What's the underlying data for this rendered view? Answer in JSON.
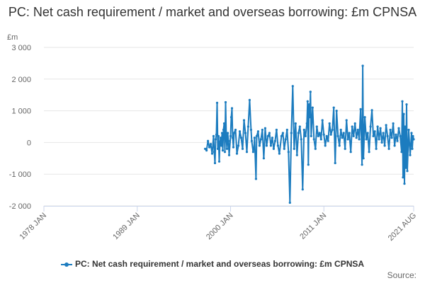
{
  "chart_data": {
    "type": "line",
    "title": "PC: Net cash requirement / market and overseas borrowing: £m CPNSA",
    "unit_label": "£m",
    "ylim": [
      -2000,
      3000
    ],
    "y_ticks": [
      "3 000",
      "2 000",
      "1 000",
      "0",
      "-1 000",
      "-2 000"
    ],
    "y_tick_values": [
      3000,
      2000,
      1000,
      0,
      -1000,
      -2000
    ],
    "x_ticks": [
      "1978 JAN",
      "1989 JAN",
      "2000 JAN",
      "2011 JAN",
      "2021 AUG"
    ],
    "x_tick_values": [
      "1978-01",
      "1989-01",
      "2000-01",
      "2011-01",
      "2021-08"
    ],
    "grid": true,
    "legend_position": "bottom",
    "series": [
      {
        "name": "PC: Net cash requirement / market and overseas borrowing: £m CPNSA",
        "color": "#1c7cbf",
        "points": [
          [
            "1997-01",
            -200
          ],
          [
            "1997-03",
            -250
          ],
          [
            "1997-05",
            50
          ],
          [
            "1997-07",
            -150
          ],
          [
            "1997-09",
            -50
          ],
          [
            "1997-11",
            -350
          ],
          [
            "1998-01",
            200
          ],
          [
            "1998-02",
            -300
          ],
          [
            "1998-03",
            -650
          ],
          [
            "1998-04",
            100
          ],
          [
            "1998-05",
            250
          ],
          [
            "1998-06",
            1250
          ],
          [
            "1998-07",
            -200
          ],
          [
            "1998-08",
            200
          ],
          [
            "1998-09",
            -600
          ],
          [
            "1998-10",
            0
          ],
          [
            "1998-11",
            150
          ],
          [
            "1998-12",
            -100
          ],
          [
            "1999-01",
            300
          ],
          [
            "1999-02",
            -250
          ],
          [
            "1999-03",
            400
          ],
          [
            "1999-04",
            600
          ],
          [
            "1999-05",
            -300
          ],
          [
            "1999-06",
            1270
          ],
          [
            "1999-07",
            100
          ],
          [
            "1999-08",
            -200
          ],
          [
            "1999-09",
            300
          ],
          [
            "1999-10",
            50
          ],
          [
            "1999-11",
            -400
          ],
          [
            "2000-01",
            200
          ],
          [
            "2000-02",
            800
          ],
          [
            "2000-03",
            1080
          ],
          [
            "2000-04",
            150
          ],
          [
            "2000-05",
            -150
          ],
          [
            "2000-06",
            300
          ],
          [
            "2000-08",
            400
          ],
          [
            "2000-10",
            -350
          ],
          [
            "2000-12",
            -100
          ],
          [
            "2001-02",
            350
          ],
          [
            "2001-04",
            150
          ],
          [
            "2001-06",
            -200
          ],
          [
            "2001-08",
            700
          ],
          [
            "2001-10",
            300
          ],
          [
            "2001-12",
            -300
          ],
          [
            "2002-02",
            500
          ],
          [
            "2002-04",
            1340
          ],
          [
            "2002-06",
            400
          ],
          [
            "2002-07",
            50
          ],
          [
            "2002-09",
            -300
          ],
          [
            "2002-10",
            -200
          ],
          [
            "2002-11",
            150
          ],
          [
            "2003-01",
            -1150
          ],
          [
            "2003-02",
            200
          ],
          [
            "2003-04",
            350
          ],
          [
            "2003-06",
            -100
          ],
          [
            "2003-08",
            100
          ],
          [
            "2003-10",
            400
          ],
          [
            "2003-12",
            -500
          ],
          [
            "2004-02",
            450
          ],
          [
            "2004-04",
            -100
          ],
          [
            "2004-06",
            200
          ],
          [
            "2004-08",
            300
          ],
          [
            "2004-10",
            -100
          ],
          [
            "2004-12",
            150
          ],
          [
            "2005-02",
            -200
          ],
          [
            "2005-04",
            50
          ],
          [
            "2005-06",
            400
          ],
          [
            "2005-08",
            -100
          ],
          [
            "2005-10",
            -350
          ],
          [
            "2006-01",
            200
          ],
          [
            "2006-03",
            300
          ],
          [
            "2006-05",
            -200
          ],
          [
            "2006-07",
            100
          ],
          [
            "2006-09",
            400
          ],
          [
            "2006-11",
            -300
          ],
          [
            "2007-01",
            -1900
          ],
          [
            "2007-03",
            300
          ],
          [
            "2007-05",
            1780
          ],
          [
            "2007-07",
            -200
          ],
          [
            "2007-09",
            600
          ],
          [
            "2007-11",
            -400
          ],
          [
            "2008-01",
            300
          ],
          [
            "2008-03",
            500
          ],
          [
            "2008-05",
            100
          ],
          [
            "2008-07",
            -1480
          ],
          [
            "2008-09",
            400
          ],
          [
            "2008-11",
            200
          ],
          [
            "2009-01",
            600
          ],
          [
            "2009-02",
            1300
          ],
          [
            "2009-03",
            -700
          ],
          [
            "2009-04",
            1200
          ],
          [
            "2009-05",
            800
          ],
          [
            "2009-06",
            1600
          ],
          [
            "2009-07",
            200
          ],
          [
            "2009-09",
            1100
          ],
          [
            "2009-11",
            100
          ],
          [
            "2010-01",
            -200
          ],
          [
            "2010-03",
            500
          ],
          [
            "2010-05",
            200
          ],
          [
            "2010-07",
            300
          ],
          [
            "2010-09",
            100
          ],
          [
            "2010-11",
            700
          ],
          [
            "2011-01",
            250
          ],
          [
            "2011-03",
            -100
          ],
          [
            "2011-05",
            200
          ],
          [
            "2011-07",
            50
          ],
          [
            "2011-09",
            600
          ],
          [
            "2011-11",
            250
          ],
          [
            "2012-01",
            400
          ],
          [
            "2012-03",
            1100
          ],
          [
            "2012-05",
            -650
          ],
          [
            "2012-07",
            1000
          ],
          [
            "2012-09",
            200
          ],
          [
            "2012-11",
            -100
          ],
          [
            "2013-01",
            400
          ],
          [
            "2013-03",
            150
          ],
          [
            "2013-05",
            300
          ],
          [
            "2013-07",
            -200
          ],
          [
            "2013-09",
            700
          ],
          [
            "2013-11",
            100
          ],
          [
            "2014-01",
            300
          ],
          [
            "2014-03",
            -300
          ],
          [
            "2014-05",
            500
          ],
          [
            "2014-07",
            200
          ],
          [
            "2014-09",
            600
          ],
          [
            "2014-11",
            150
          ],
          [
            "2015-01",
            400
          ],
          [
            "2015-03",
            100
          ],
          [
            "2015-05",
            1050
          ],
          [
            "2015-07",
            -700
          ],
          [
            "2015-08",
            2420
          ],
          [
            "2015-09",
            -500
          ],
          [
            "2015-11",
            800
          ],
          [
            "2016-01",
            100
          ],
          [
            "2016-03",
            300
          ],
          [
            "2016-05",
            -300
          ],
          [
            "2016-07",
            500
          ],
          [
            "2016-09",
            1020
          ],
          [
            "2016-11",
            200
          ],
          [
            "2017-01",
            350
          ],
          [
            "2017-03",
            -200
          ],
          [
            "2017-05",
            500
          ],
          [
            "2017-07",
            100
          ],
          [
            "2017-09",
            450
          ],
          [
            "2017-11",
            0
          ],
          [
            "2018-01",
            300
          ],
          [
            "2018-03",
            -100
          ],
          [
            "2018-05",
            550
          ],
          [
            "2018-07",
            200
          ],
          [
            "2018-09",
            -200
          ],
          [
            "2018-11",
            400
          ],
          [
            "2019-01",
            150
          ],
          [
            "2019-03",
            600
          ],
          [
            "2019-05",
            -100
          ],
          [
            "2019-07",
            250
          ],
          [
            "2019-09",
            50
          ],
          [
            "2019-11",
            450
          ],
          [
            "2020-01",
            200
          ],
          [
            "2020-03",
            -300
          ],
          [
            "2020-04",
            1300
          ],
          [
            "2020-05",
            -1100
          ],
          [
            "2020-06",
            900
          ],
          [
            "2020-07",
            -1300
          ],
          [
            "2020-08",
            500
          ],
          [
            "2020-09",
            -800
          ],
          [
            "2020-10",
            1200
          ],
          [
            "2020-11",
            -900
          ],
          [
            "2021-01",
            400
          ],
          [
            "2021-03",
            -400
          ],
          [
            "2021-05",
            300
          ],
          [
            "2021-06",
            -200
          ],
          [
            "2021-07",
            200
          ],
          [
            "2021-08",
            100
          ]
        ]
      }
    ]
  },
  "source_label": "Source:"
}
